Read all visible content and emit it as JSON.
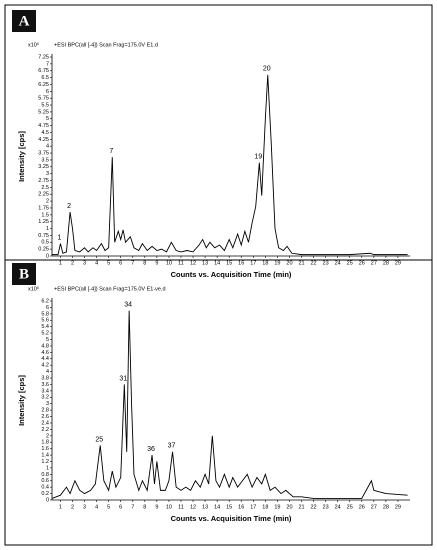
{
  "chart_data": [
    {
      "type": "line",
      "panel": "A",
      "header": "+ESI BPC(all [-4]) Scan Frag=175.0V E1.d",
      "y_multiplier": "x10⁶",
      "ylabel": "Intensity [cps]",
      "xlabel": "Counts vs. Acquisition Time (min)",
      "color": "#000000",
      "xlim": [
        0.3,
        30
      ],
      "xticks": [
        1,
        2,
        3,
        4,
        5,
        6,
        7,
        8,
        9,
        10,
        11,
        12,
        13,
        14,
        15,
        16,
        17,
        18,
        19,
        20,
        21,
        22,
        23,
        24,
        25,
        26,
        27,
        28,
        29
      ],
      "ylim": [
        0,
        7.25
      ],
      "yticks": [
        0,
        0.25,
        0.5,
        0.75,
        1,
        1.25,
        1.5,
        1.75,
        2,
        2.25,
        2.5,
        2.75,
        3,
        3.25,
        3.5,
        3.75,
        4,
        4.25,
        4.5,
        4.75,
        5,
        5.25,
        5.5,
        5.75,
        6,
        6.25,
        6.5,
        6.75,
        7,
        7.25
      ],
      "x": [
        0.3,
        0.8,
        1.0,
        1.2,
        1.5,
        1.8,
        2.0,
        2.2,
        2.6,
        3.0,
        3.3,
        3.7,
        4.0,
        4.4,
        4.7,
        5.0,
        5.3,
        5.5,
        5.8,
        6.0,
        6.2,
        6.4,
        6.8,
        7.1,
        7.5,
        7.8,
        8.2,
        8.6,
        9.0,
        9.4,
        9.8,
        10.2,
        10.6,
        11.0,
        11.5,
        12.0,
        12.5,
        12.8,
        13.1,
        13.4,
        13.8,
        14.2,
        14.6,
        15.0,
        15.3,
        15.7,
        16.0,
        16.3,
        16.6,
        16.9,
        17.2,
        17.5,
        17.7,
        18.0,
        18.2,
        18.5,
        18.8,
        19.1,
        19.5,
        19.8,
        20.2,
        21,
        23,
        25,
        26.7,
        27,
        29.8
      ],
      "values": [
        0.05,
        0.05,
        0.45,
        0.1,
        0.15,
        1.6,
        1.0,
        0.2,
        0.15,
        0.3,
        0.15,
        0.3,
        0.2,
        0.45,
        0.2,
        0.3,
        3.6,
        0.5,
        0.9,
        0.6,
        0.95,
        0.5,
        0.7,
        0.3,
        0.2,
        0.45,
        0.2,
        0.35,
        0.2,
        0.25,
        0.15,
        0.5,
        0.2,
        0.15,
        0.2,
        0.15,
        0.4,
        0.6,
        0.3,
        0.5,
        0.3,
        0.4,
        0.2,
        0.6,
        0.3,
        0.8,
        0.4,
        0.9,
        0.5,
        1.2,
        1.8,
        3.4,
        2.2,
        5.0,
        6.6,
        4.0,
        1.0,
        0.3,
        0.2,
        0.35,
        0.1,
        0.05,
        0.05,
        0.05,
        0.1,
        0.05,
        0.05
      ],
      "annotations": [
        {
          "text": "1",
          "x": 1.0,
          "y": 0.45
        },
        {
          "text": "2",
          "x": 1.8,
          "y": 1.6
        },
        {
          "text": "7",
          "x": 5.3,
          "y": 3.6
        },
        {
          "text": "19",
          "x": 17.5,
          "y": 3.4
        },
        {
          "text": "20",
          "x": 18.2,
          "y": 6.6
        }
      ]
    },
    {
      "type": "line",
      "panel": "B",
      "header": "+ESI BPC(all [-4]) Scan Frag=175.0V E1-ve.d",
      "y_multiplier": "x10⁶",
      "ylabel": "Intensity [cps]",
      "xlabel": "Counts vs. Acquisition Time (min)",
      "color": "#000000",
      "xlim": [
        0.3,
        30
      ],
      "xticks": [
        1,
        2,
        3,
        4,
        5,
        6,
        7,
        8,
        9,
        10,
        11,
        12,
        13,
        14,
        15,
        16,
        17,
        18,
        19,
        20,
        21,
        22,
        23,
        24,
        25,
        26,
        27,
        28,
        29
      ],
      "ylim": [
        0,
        6.2
      ],
      "yticks": [
        0,
        0.2,
        0.4,
        0.6,
        0.8,
        1,
        1.2,
        1.4,
        1.6,
        1.8,
        2,
        2.2,
        2.4,
        2.6,
        2.8,
        3,
        3.2,
        3.4,
        3.6,
        3.8,
        4,
        4.2,
        4.4,
        4.6,
        4.8,
        5,
        5.2,
        5.4,
        5.6,
        5.8,
        6,
        6.2
      ],
      "x": [
        0.3,
        1.0,
        1.5,
        1.8,
        2.2,
        2.6,
        3.0,
        3.5,
        3.9,
        4.3,
        4.6,
        5.0,
        5.3,
        5.6,
        6.0,
        6.3,
        6.5,
        6.7,
        6.9,
        7.1,
        7.5,
        7.8,
        8.2,
        8.6,
        8.8,
        9.0,
        9.3,
        9.7,
        10.0,
        10.3,
        10.6,
        11.0,
        11.4,
        11.8,
        12.2,
        12.6,
        13.0,
        13.3,
        13.6,
        13.9,
        14.2,
        14.6,
        15.0,
        15.3,
        15.7,
        16.1,
        16.5,
        16.9,
        17.3,
        17.7,
        18.0,
        18.4,
        18.8,
        19.3,
        19.7,
        20.3,
        21,
        22,
        24,
        26,
        26.8,
        27,
        28,
        29.8
      ],
      "values": [
        0.05,
        0.15,
        0.4,
        0.2,
        0.6,
        0.3,
        0.2,
        0.3,
        0.5,
        1.7,
        0.6,
        0.3,
        0.9,
        0.4,
        0.7,
        3.6,
        1.5,
        5.9,
        3.0,
        0.8,
        0.3,
        0.6,
        0.3,
        1.4,
        0.5,
        1.2,
        0.3,
        0.3,
        0.6,
        1.5,
        0.4,
        0.3,
        0.4,
        0.3,
        0.6,
        0.4,
        0.8,
        0.5,
        2.0,
        0.6,
        0.4,
        0.8,
        0.4,
        0.7,
        0.4,
        0.6,
        0.8,
        0.4,
        0.7,
        0.5,
        0.8,
        0.3,
        0.4,
        0.2,
        0.3,
        0.1,
        0.1,
        0.05,
        0.05,
        0.05,
        0.6,
        0.3,
        0.2,
        0.15
      ],
      "annotations": [
        {
          "text": "25",
          "x": 4.3,
          "y": 1.7
        },
        {
          "text": "31",
          "x": 6.3,
          "y": 3.6
        },
        {
          "text": "34",
          "x": 6.7,
          "y": 5.9
        },
        {
          "text": "36",
          "x": 8.6,
          "y": 1.4
        },
        {
          "text": "37",
          "x": 10.3,
          "y": 1.5
        }
      ]
    }
  ]
}
